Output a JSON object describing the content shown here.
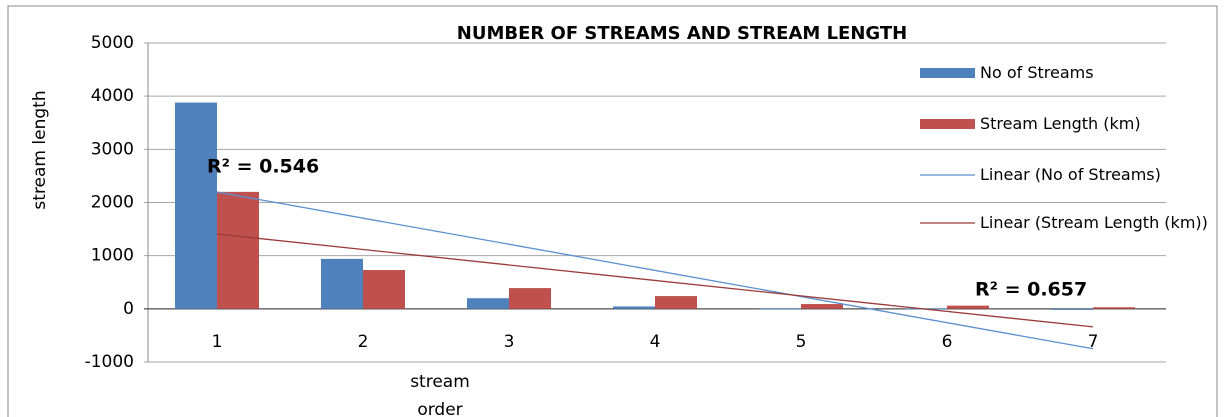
{
  "chart_data": {
    "type": "bar",
    "title": "NUMBER OF STREAMS AND STREAM LENGTH",
    "y_label": "stream  length",
    "x_label": "stream order",
    "categories": [
      "1",
      "2",
      "3",
      "4",
      "5",
      "6",
      "7"
    ],
    "series": [
      {
        "name": "No of Streams",
        "color": "#4f81bd",
        "values": [
          3880,
          940,
          200,
          45,
          10,
          5,
          -20
        ]
      },
      {
        "name": "Stream Length (km)",
        "color": "#c0504d",
        "values": [
          2200,
          730,
          390,
          240,
          90,
          60,
          30
        ]
      }
    ],
    "trendlines": [
      {
        "name": "Linear (No of Streams)",
        "color": "#5b8fd0",
        "r2_label": "R² = 0.546"
      },
      {
        "name": "Linear (Stream Length (km))",
        "color": "#9b3a38",
        "r2_label": "R² = 0.657"
      }
    ],
    "ylim": [
      -1000,
      5000
    ],
    "yticks": [
      -1000,
      0,
      1000,
      2000,
      3000,
      4000,
      5000
    ],
    "grid": true,
    "legend": "right"
  }
}
